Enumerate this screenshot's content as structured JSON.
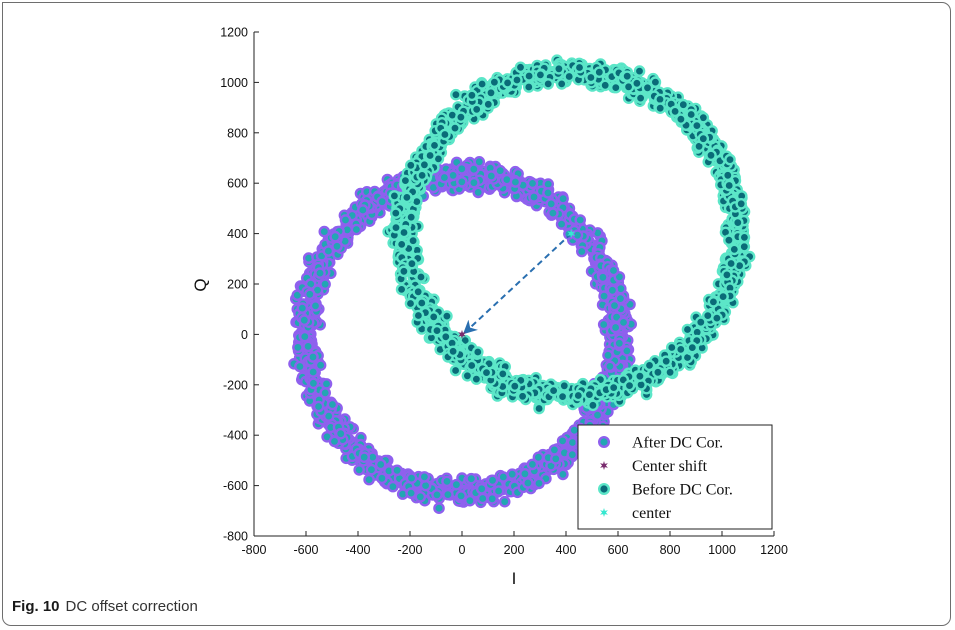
{
  "chart_data": {
    "type": "scatter",
    "title": "",
    "xlabel": "I",
    "ylabel": "Q",
    "xlim": [
      -800,
      1200
    ],
    "ylim": [
      -800,
      1200
    ],
    "xticks": [
      -800,
      -600,
      -400,
      -200,
      0,
      200,
      400,
      600,
      800,
      1000,
      1200
    ],
    "yticks": [
      -800,
      -600,
      -400,
      -200,
      0,
      200,
      400,
      600,
      800,
      1000,
      1200
    ],
    "grid": false,
    "legend_position": "bottom-right",
    "series": [
      {
        "name": "After DC Cor.",
        "marker": "circle",
        "color": "#8f60ee",
        "edge_color": "#8f60ee",
        "fill_color": "#22a6b3",
        "shape": "noisy ring (constellation)",
        "center": [
          0,
          0
        ],
        "radius_mean": 600,
        "radius_spread": 45,
        "notes": "ring spans approx I -700..700, Q -610..720"
      },
      {
        "name": "Center shift",
        "marker": "star",
        "color": "#7a2c6e",
        "x": [
          0
        ],
        "y": [
          0
        ]
      },
      {
        "name": "Before DC  Cor.",
        "marker": "circle",
        "color": "#5ce6c8",
        "edge_color": "#5ce6c8",
        "fill_color": "#0a6b78",
        "shape": "noisy ring (constellation)",
        "center": [
          420,
          400
        ],
        "radius_mean": 640,
        "radius_spread": 45,
        "notes": "ring spans approx I -350..1180, Q -300..1150"
      },
      {
        "name": "center",
        "marker": "star",
        "color": "#36e8d0",
        "x": [
          420
        ],
        "y": [
          400
        ]
      }
    ],
    "annotations": [
      {
        "type": "dashed-arrow",
        "from": [
          420,
          400
        ],
        "to": [
          0,
          0
        ],
        "color": "#2a6fb0"
      }
    ]
  },
  "caption": {
    "label": "Fig. 10",
    "text": "DC offset correction"
  }
}
